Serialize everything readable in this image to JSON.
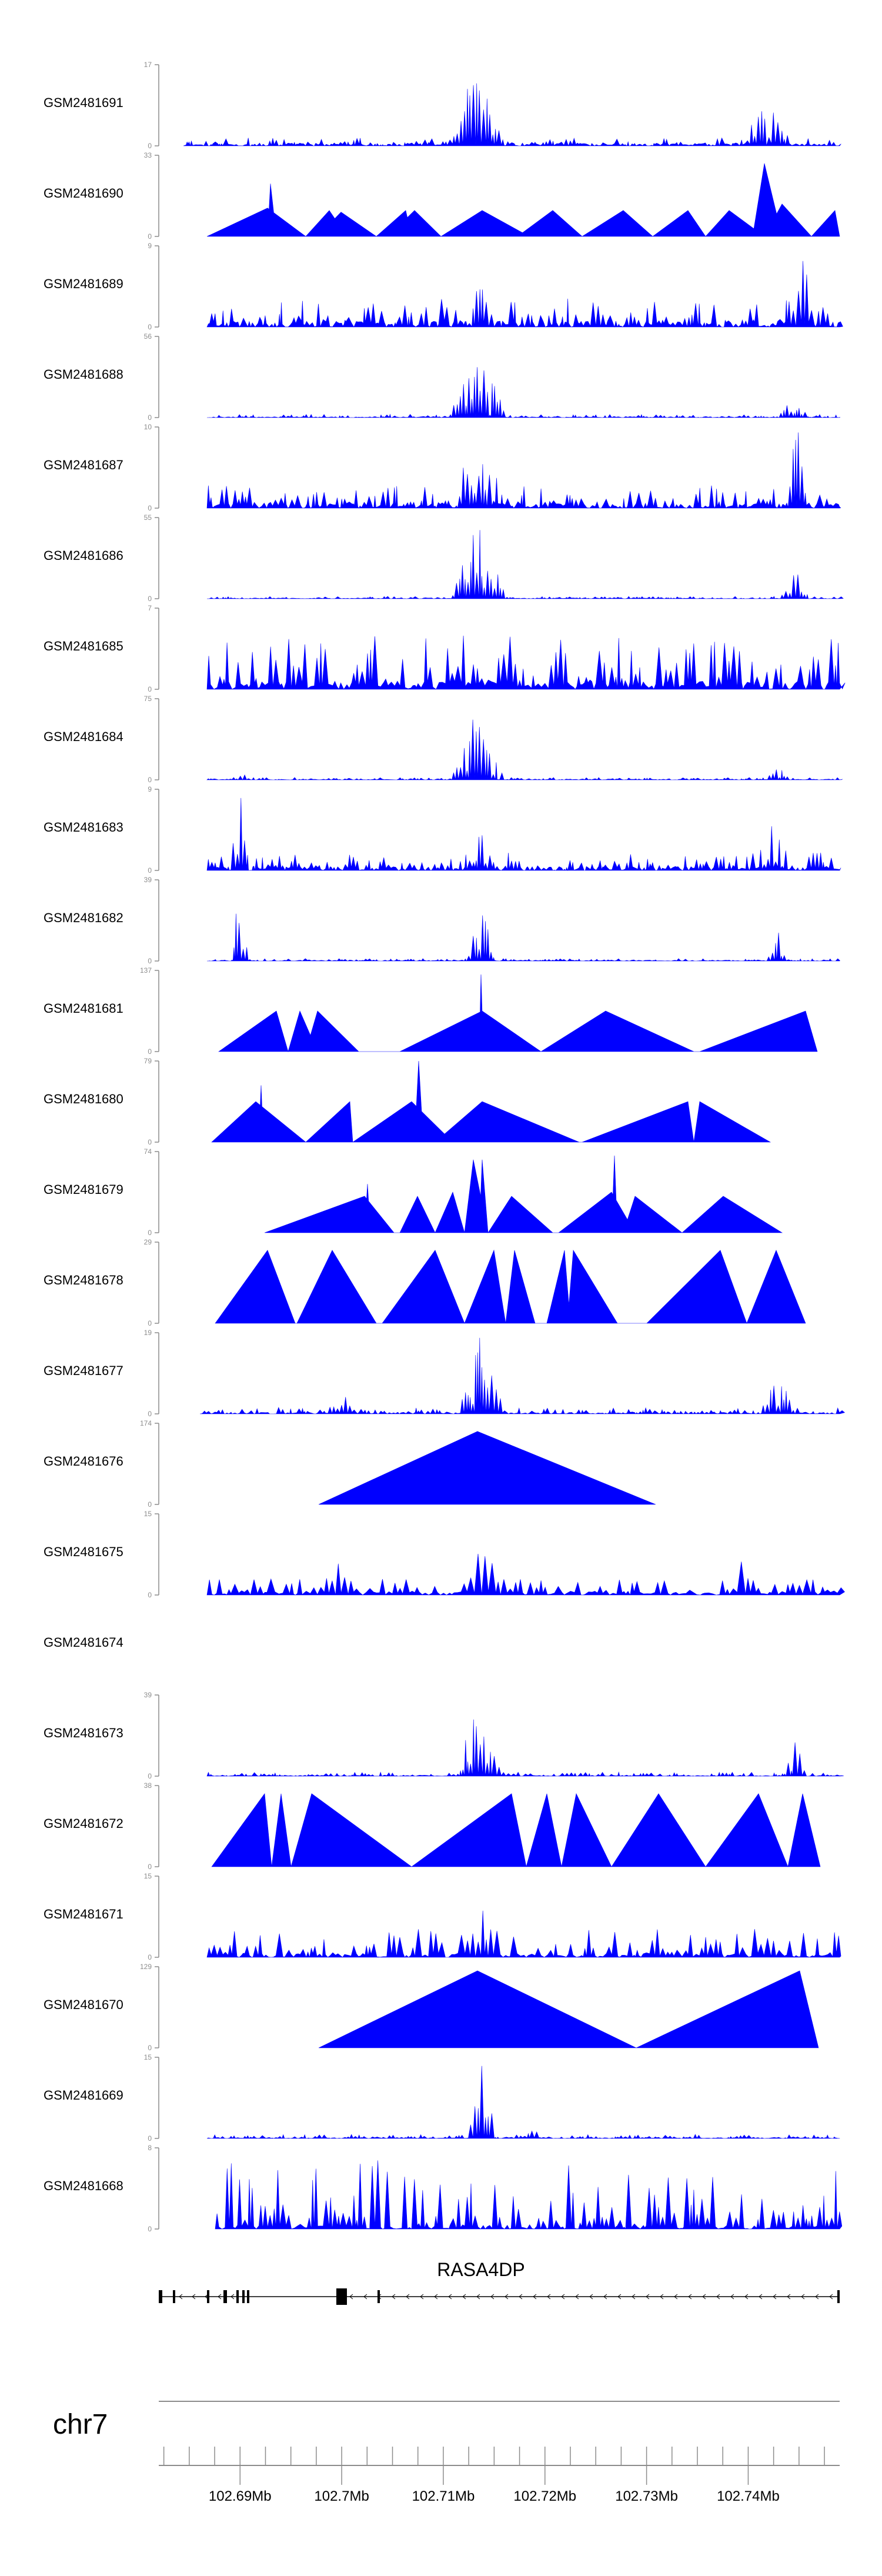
{
  "chart_data": {
    "type": "area",
    "title": "",
    "tracks": [
      {
        "sample": "GSM2481691",
        "ymax": 17
      },
      {
        "sample": "GSM2481690",
        "ymax": 33
      },
      {
        "sample": "GSM2481689",
        "ymax": 9
      },
      {
        "sample": "GSM2481688",
        "ymax": 56
      },
      {
        "sample": "GSM2481687",
        "ymax": 10
      },
      {
        "sample": "GSM2481686",
        "ymax": 55
      },
      {
        "sample": "GSM2481685",
        "ymax": 7
      },
      {
        "sample": "GSM2481684",
        "ymax": 75
      },
      {
        "sample": "GSM2481683",
        "ymax": 9
      },
      {
        "sample": "GSM2481682",
        "ymax": 39
      },
      {
        "sample": "GSM2481681",
        "ymax": 137
      },
      {
        "sample": "GSM2481680",
        "ymax": 79
      },
      {
        "sample": "GSM2481679",
        "ymax": 74
      },
      {
        "sample": "GSM2481678",
        "ymax": 29
      },
      {
        "sample": "GSM2481677",
        "ymax": 19
      },
      {
        "sample": "GSM2481676",
        "ymax": 174
      },
      {
        "sample": "GSM2481675",
        "ymax": 15
      },
      {
        "sample": "GSM2481674",
        "ymax": null
      },
      {
        "sample": "GSM2481673",
        "ymax": 39
      },
      {
        "sample": "GSM2481672",
        "ymax": 38
      },
      {
        "sample": "GSM2481671",
        "ymax": 15
      },
      {
        "sample": "GSM2481670",
        "ymax": 129
      },
      {
        "sample": "GSM2481669",
        "ymax": 15
      },
      {
        "sample": "GSM2481668",
        "ymax": 8
      }
    ],
    "ymin_label": "0",
    "gene": {
      "name": "RASA4DP"
    },
    "chromosome": "chr7",
    "x_axis": {
      "unit": "Mb",
      "range": [
        102.682,
        102.749
      ],
      "major_ticks": [
        102.69,
        102.7,
        102.71,
        102.72,
        102.73,
        102.74
      ],
      "tick_labels": [
        "102.69Mb",
        "102.7Mb",
        "102.71Mb",
        "102.72Mb",
        "102.73Mb",
        "102.74Mb"
      ]
    },
    "fill_color": "#0000ff"
  }
}
